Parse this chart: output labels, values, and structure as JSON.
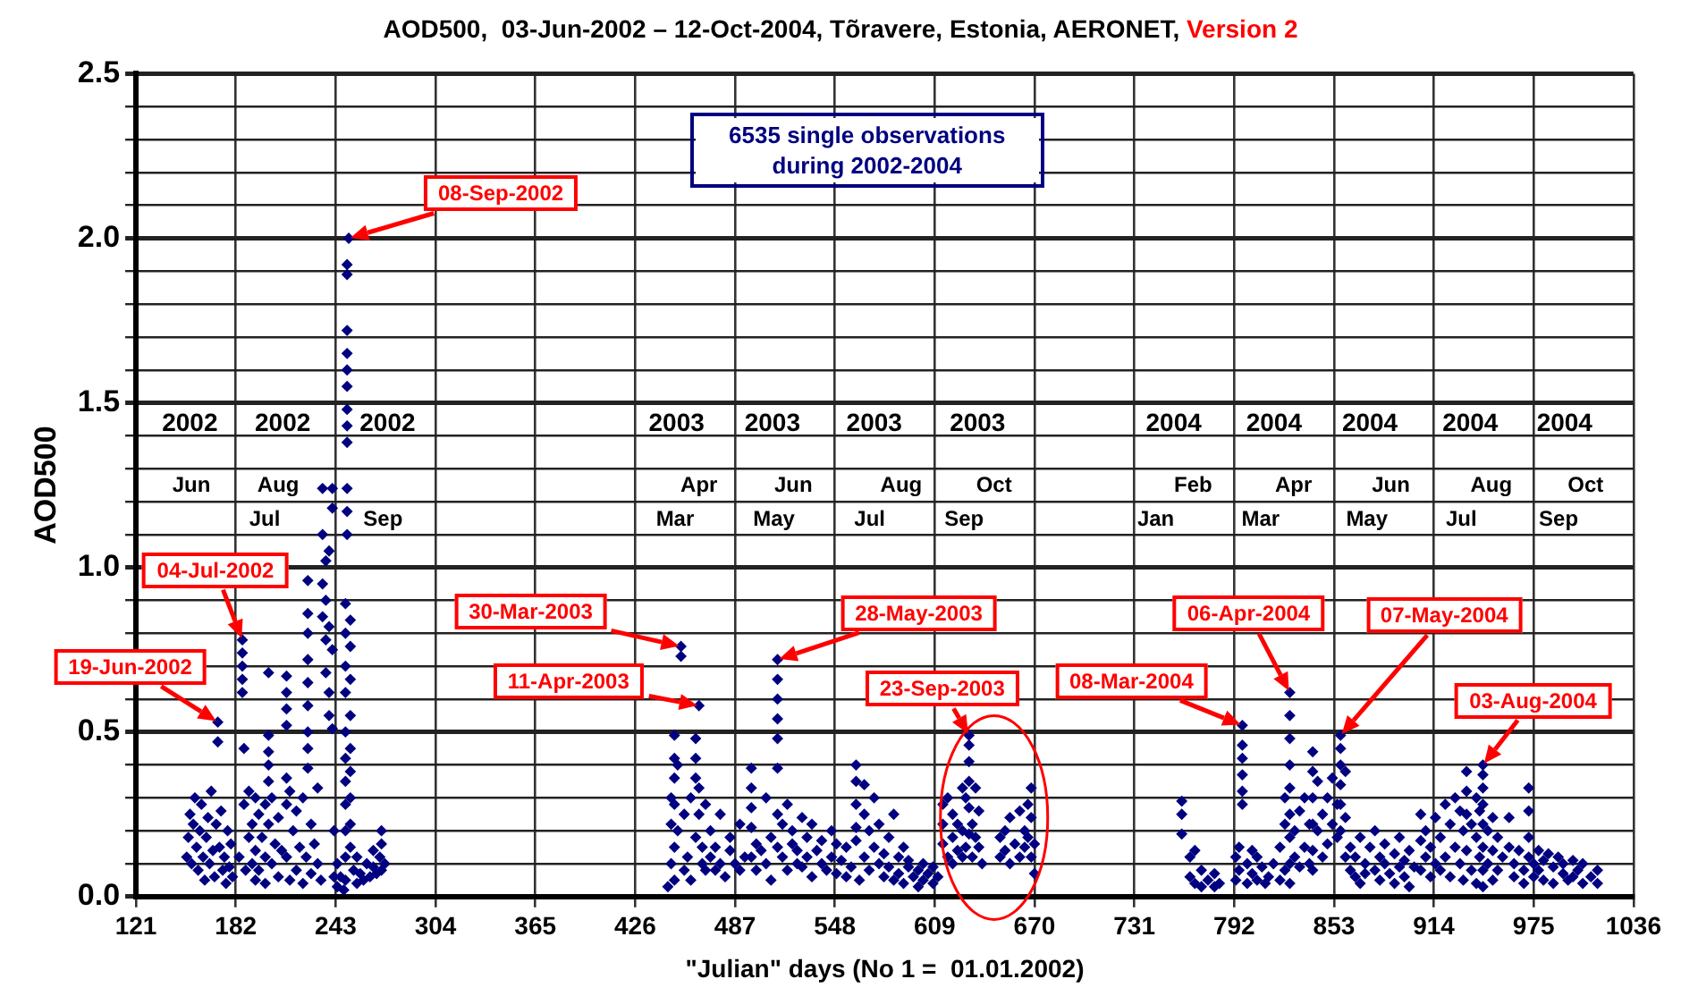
{
  "chart_data": {
    "type": "scatter",
    "title": "AOD500,  03-Jun-2002 – 12-Oct-2004, Tõravere, Estonia, AERONET,",
    "subtitle": "Version 2",
    "xlabel": "\"Julian\" days (No 1 =  01.01.2002)",
    "ylabel": "AOD500",
    "xlim": [
      121,
      1036
    ],
    "xticks": [
      121,
      182,
      243,
      304,
      365,
      426,
      487,
      548,
      609,
      670,
      731,
      792,
      853,
      914,
      975,
      1036
    ],
    "ylim": [
      0,
      2.5
    ],
    "yticks": [
      {
        "value": 0,
        "label": "0.0"
      },
      {
        "value": 0.1,
        "label": null
      },
      {
        "value": 0.2,
        "label": null
      },
      {
        "value": 0.3,
        "label": null
      },
      {
        "value": 0.4,
        "label": null
      },
      {
        "value": 0.5,
        "label": "0.5"
      },
      {
        "value": 0.6,
        "label": null
      },
      {
        "value": 0.7,
        "label": null
      },
      {
        "value": 0.8,
        "label": null
      },
      {
        "value": 0.9,
        "label": null
      },
      {
        "value": 1,
        "label": "1.0"
      },
      {
        "value": 1.1,
        "label": null
      },
      {
        "value": 1.2,
        "label": null
      },
      {
        "value": 1.3,
        "label": null
      },
      {
        "value": 1.4,
        "label": null
      },
      {
        "value": 1.5,
        "label": "1.5"
      },
      {
        "value": 1.6,
        "label": null
      },
      {
        "value": 1.7,
        "label": null
      },
      {
        "value": 1.8,
        "label": null
      },
      {
        "value": 1.9,
        "label": null
      },
      {
        "value": 2,
        "label": "2.0"
      },
      {
        "value": 2.1,
        "label": null
      },
      {
        "value": 2.2,
        "label": null
      },
      {
        "value": 2.3,
        "label": null
      },
      {
        "value": 2.4,
        "label": null
      },
      {
        "value": 2.5,
        "label": "2.5"
      }
    ],
    "grid": true,
    "legend": false,
    "marker": "diamond",
    "series": [
      {
        "color": "#000080",
        "x": [
          152,
          153,
          154,
          155,
          156,
          157,
          158,
          159,
          160,
          161,
          162,
          163,
          164,
          165,
          166,
          167,
          168,
          169,
          170,
          171,
          171,
          172,
          173,
          174,
          175,
          176,
          177,
          178,
          179,
          180,
          186,
          186,
          186,
          186,
          186,
          187,
          187,
          184,
          188,
          190,
          190,
          192,
          192,
          194,
          194,
          194,
          196,
          196,
          198,
          200,
          200,
          200,
          202,
          202,
          202,
          202,
          202,
          202,
          204,
          204,
          206,
          208,
          208,
          210,
          213,
          213,
          213,
          213,
          213,
          213,
          213,
          215,
          215,
          217,
          219,
          219,
          221,
          223,
          223,
          225,
          226,
          226,
          226,
          226,
          226,
          226,
          226,
          226,
          226,
          228,
          228,
          230,
          232,
          232,
          234,
          235,
          235,
          235,
          235,
          237,
          237,
          237,
          237,
          239,
          239,
          239,
          239,
          241,
          241,
          241,
          241,
          242,
          242,
          251,
          250,
          250,
          250,
          250,
          250,
          250,
          250,
          250,
          250,
          250,
          250,
          250,
          249,
          249,
          249,
          249,
          249,
          249,
          249,
          249,
          249,
          249,
          249,
          252,
          252,
          252,
          252,
          252,
          252,
          252,
          252,
          252,
          244,
          244,
          246,
          248,
          254,
          256,
          256,
          258,
          260,
          262,
          264,
          266,
          266,
          268,
          270,
          271,
          271,
          271,
          273,
          446,
          448,
          448,
          448,
          450,
          450,
          450,
          450,
          450,
          450,
          452,
          452,
          454,
          454,
          456,
          456,
          458,
          460,
          460,
          463,
          463,
          463,
          463,
          465,
          465,
          465,
          467,
          467,
          469,
          469,
          472,
          472,
          475,
          475,
          478,
          478,
          481,
          484,
          484,
          487,
          490,
          490,
          493,
          497,
          497,
          497,
          497,
          497,
          500,
          500,
          503,
          506,
          506,
          509,
          509,
          513,
          513,
          513,
          513,
          513,
          513,
          513,
          513,
          516,
          516,
          519,
          519,
          522,
          522,
          525,
          525,
          528,
          528,
          531,
          531,
          534,
          534,
          537,
          540,
          540,
          543,
          546,
          546,
          549,
          549,
          552,
          555,
          555,
          558,
          561,
          561,
          561,
          561,
          561,
          563,
          566,
          566,
          566,
          569,
          569,
          572,
          572,
          575,
          575,
          578,
          578,
          581,
          581,
          584,
          584,
          587,
          587,
          590,
          590,
          593,
          593,
          596,
          599,
          599,
          602,
          602,
          605,
          608,
          608,
          611,
          614,
          614,
          614,
          617,
          617,
          620,
          620,
          620,
          623,
          623,
          626,
          626,
          626,
          628,
          628,
          630,
          630,
          630,
          630,
          630,
          630,
          632,
          632,
          634,
          634,
          636,
          636,
          638,
          649,
          649,
          652,
          652,
          655,
          655,
          658,
          661,
          661,
          664,
          664,
          666,
          666,
          668,
          668,
          668,
          670,
          670,
          760,
          760,
          760,
          765,
          765,
          768,
          768,
          772,
          772,
          776,
          780,
          780,
          783,
          793,
          793,
          795,
          795,
          797,
          797,
          797,
          797,
          797,
          797,
          800,
          800,
          803,
          803,
          806,
          806,
          809,
          811,
          813,
          816,
          820,
          820,
          823,
          823,
          823,
          826,
          826,
          826,
          826,
          826,
          826,
          826,
          826,
          826,
          829,
          829,
          832,
          832,
          835,
          835,
          838,
          838,
          840,
          840,
          840,
          840,
          840,
          840,
          843,
          843,
          846,
          846,
          849,
          849,
          852,
          852,
          855,
          855,
          857,
          857,
          857,
          857,
          857,
          857,
          860,
          860,
          860,
          863,
          863,
          866,
          866,
          869,
          869,
          872,
          872,
          875,
          878,
          878,
          881,
          881,
          884,
          884,
          887,
          890,
          890,
          893,
          893,
          896,
          896,
          899,
          899,
          902,
          906,
          906,
          906,
          909,
          909,
          912,
          912,
          915,
          915,
          918,
          918,
          921,
          921,
          924,
          924,
          927,
          927,
          930,
          930,
          932,
          932,
          934,
          934,
          934,
          934,
          937,
          937,
          940,
          940,
          940,
          942,
          942,
          944,
          944,
          944,
          944,
          944,
          944,
          944,
          944,
          947,
          947,
          950,
          950,
          950,
          953,
          953,
          956,
          960,
          960,
          963,
          963,
          966,
          969,
          969,
          972,
          972,
          972,
          972,
          975,
          975,
          978,
          978,
          981,
          981,
          984,
          987,
          987,
          990,
          993,
          993,
          996,
          999,
          999,
          1002,
          1005,
          1005,
          1010,
          1014,
          1014
        ],
        "values": [
          0.12,
          0.18,
          0.25,
          0.1,
          0.22,
          0.3,
          0.15,
          0.08,
          0.2,
          0.28,
          0.12,
          0.05,
          0.18,
          0.24,
          0.1,
          0.32,
          0.14,
          0.06,
          0.22,
          0.53,
          0.47,
          0.15,
          0.26,
          0.08,
          0.12,
          0.04,
          0.2,
          0.09,
          0.16,
          0.06,
          0.78,
          0.74,
          0.7,
          0.66,
          0.62,
          0.45,
          0.28,
          0.12,
          0.08,
          0.32,
          0.18,
          0.22,
          0.1,
          0.3,
          0.14,
          0.05,
          0.25,
          0.08,
          0.18,
          0.12,
          0.28,
          0.04,
          0.68,
          0.49,
          0.44,
          0.4,
          0.35,
          0.22,
          0.1,
          0.3,
          0.16,
          0.06,
          0.24,
          0.14,
          0.67,
          0.62,
          0.57,
          0.52,
          0.36,
          0.28,
          0.12,
          0.05,
          0.32,
          0.2,
          0.08,
          0.26,
          0.15,
          0.04,
          0.3,
          0.12,
          0.96,
          0.86,
          0.8,
          0.72,
          0.65,
          0.58,
          0.5,
          0.45,
          0.39,
          0.22,
          0.07,
          0.16,
          0.33,
          0.1,
          0.05,
          1.24,
          1.1,
          0.95,
          0.85,
          1.02,
          0.9,
          0.78,
          0.68,
          1.05,
          0.82,
          0.62,
          0.55,
          1.24,
          1.18,
          0.75,
          0.51,
          0.2,
          0.06,
          2.0,
          1.92,
          1.89,
          1.72,
          1.65,
          1.6,
          1.55,
          1.48,
          1.43,
          1.38,
          1.24,
          1.17,
          1.1,
          0.89,
          0.8,
          0.7,
          0.62,
          0.5,
          0.42,
          0.35,
          0.28,
          0.2,
          0.12,
          0.05,
          0.84,
          0.76,
          0.66,
          0.55,
          0.45,
          0.38,
          0.3,
          0.22,
          0.15,
          0.03,
          0.1,
          0.06,
          0.02,
          0.08,
          0.04,
          0.12,
          0.07,
          0.05,
          0.1,
          0.06,
          0.09,
          0.14,
          0.07,
          0.12,
          0.2,
          0.16,
          0.08,
          0.1,
          0.03,
          0.3,
          0.22,
          0.1,
          0.49,
          0.42,
          0.36,
          0.28,
          0.15,
          0.05,
          0.4,
          0.2,
          0.76,
          0.73,
          0.25,
          0.08,
          0.12,
          0.3,
          0.05,
          0.48,
          0.42,
          0.36,
          0.18,
          0.58,
          0.33,
          0.25,
          0.15,
          0.1,
          0.28,
          0.08,
          0.2,
          0.12,
          0.08,
          0.15,
          0.25,
          0.1,
          0.06,
          0.14,
          0.18,
          0.1,
          0.22,
          0.08,
          0.12,
          0.39,
          0.33,
          0.27,
          0.21,
          0.12,
          0.08,
          0.16,
          0.14,
          0.3,
          0.1,
          0.18,
          0.05,
          0.72,
          0.66,
          0.6,
          0.54,
          0.48,
          0.39,
          0.25,
          0.15,
          0.12,
          0.22,
          0.08,
          0.28,
          0.16,
          0.2,
          0.1,
          0.14,
          0.24,
          0.09,
          0.12,
          0.18,
          0.06,
          0.22,
          0.14,
          0.1,
          0.17,
          0.08,
          0.2,
          0.12,
          0.07,
          0.16,
          0.11,
          0.15,
          0.06,
          0.09,
          0.4,
          0.35,
          0.28,
          0.21,
          0.17,
          0.05,
          0.34,
          0.25,
          0.12,
          0.08,
          0.2,
          0.3,
          0.15,
          0.1,
          0.22,
          0.06,
          0.13,
          0.18,
          0.09,
          0.25,
          0.05,
          0.12,
          0.07,
          0.15,
          0.04,
          0.09,
          0.11,
          0.06,
          0.08,
          0.03,
          0.05,
          0.1,
          0.07,
          0.04,
          0.09,
          0.06,
          0.28,
          0.22,
          0.16,
          0.3,
          0.12,
          0.25,
          0.18,
          0.1,
          0.14,
          0.22,
          0.33,
          0.2,
          0.12,
          0.3,
          0.15,
          0.49,
          0.46,
          0.41,
          0.35,
          0.27,
          0.19,
          0.22,
          0.12,
          0.33,
          0.18,
          0.15,
          0.26,
          0.1,
          0.18,
          0.12,
          0.2,
          0.14,
          0.24,
          0.1,
          0.16,
          0.26,
          0.12,
          0.2,
          0.15,
          0.28,
          0.18,
          0.33,
          0.24,
          0.12,
          0.16,
          0.07,
          0.29,
          0.25,
          0.19,
          0.12,
          0.06,
          0.14,
          0.04,
          0.08,
          0.03,
          0.05,
          0.07,
          0.03,
          0.04,
          0.12,
          0.05,
          0.08,
          0.15,
          0.52,
          0.46,
          0.42,
          0.37,
          0.32,
          0.28,
          0.1,
          0.04,
          0.14,
          0.07,
          0.05,
          0.12,
          0.09,
          0.04,
          0.06,
          0.1,
          0.15,
          0.05,
          0.3,
          0.22,
          0.08,
          0.62,
          0.55,
          0.48,
          0.4,
          0.33,
          0.25,
          0.18,
          0.1,
          0.04,
          0.2,
          0.12,
          0.26,
          0.09,
          0.3,
          0.15,
          0.22,
          0.1,
          0.44,
          0.38,
          0.3,
          0.22,
          0.14,
          0.08,
          0.35,
          0.2,
          0.25,
          0.12,
          0.3,
          0.16,
          0.36,
          0.22,
          0.28,
          0.18,
          0.49,
          0.45,
          0.4,
          0.34,
          0.28,
          0.2,
          0.38,
          0.24,
          0.12,
          0.15,
          0.08,
          0.06,
          0.12,
          0.18,
          0.04,
          0.1,
          0.07,
          0.15,
          0.08,
          0.2,
          0.05,
          0.12,
          0.1,
          0.16,
          0.07,
          0.13,
          0.04,
          0.09,
          0.18,
          0.06,
          0.11,
          0.14,
          0.03,
          0.09,
          0.25,
          0.17,
          0.08,
          0.12,
          0.2,
          0.06,
          0.15,
          0.24,
          0.1,
          0.18,
          0.08,
          0.12,
          0.28,
          0.22,
          0.06,
          0.3,
          0.15,
          0.26,
          0.1,
          0.2,
          0.05,
          0.38,
          0.32,
          0.25,
          0.14,
          0.22,
          0.08,
          0.3,
          0.18,
          0.04,
          0.26,
          0.12,
          0.4,
          0.37,
          0.33,
          0.28,
          0.22,
          0.15,
          0.08,
          0.03,
          0.2,
          0.1,
          0.24,
          0.14,
          0.05,
          0.18,
          0.08,
          0.12,
          0.24,
          0.15,
          0.1,
          0.06,
          0.14,
          0.08,
          0.04,
          0.33,
          0.26,
          0.18,
          0.12,
          0.1,
          0.06,
          0.14,
          0.08,
          0.11,
          0.05,
          0.13,
          0.09,
          0.04,
          0.12,
          0.07,
          0.1,
          0.05,
          0.11,
          0.06,
          0.08,
          0.1,
          0.04,
          0.06,
          0.08,
          0.04
        ]
      }
    ],
    "annotations": [
      "19-Jun-2002",
      "04-Jul-2002",
      "08-Sep-2002",
      "30-Mar-2003",
      "11-Apr-2003",
      "28-May-2003",
      "23-Sep-2003",
      "08-Mar-2004",
      "06-Apr-2004",
      "07-May-2004",
      "03-Aug-2004",
      "6535 single observations during 2002-2004",
      "2002",
      "2002",
      "2002",
      "2003",
      "2003",
      "2003",
      "2003",
      "2004",
      "2004",
      "2004",
      "2004",
      "2004",
      "Jun",
      "Aug",
      "Apr",
      "Jun",
      "Aug",
      "Oct",
      "Feb",
      "Apr",
      "Jun",
      "Aug",
      "Oct",
      "Jul",
      "Sep",
      "Mar",
      "May",
      "Jul",
      "Sep",
      "Jan",
      "Mar",
      "May",
      "Jul",
      "Sep"
    ]
  }
}
